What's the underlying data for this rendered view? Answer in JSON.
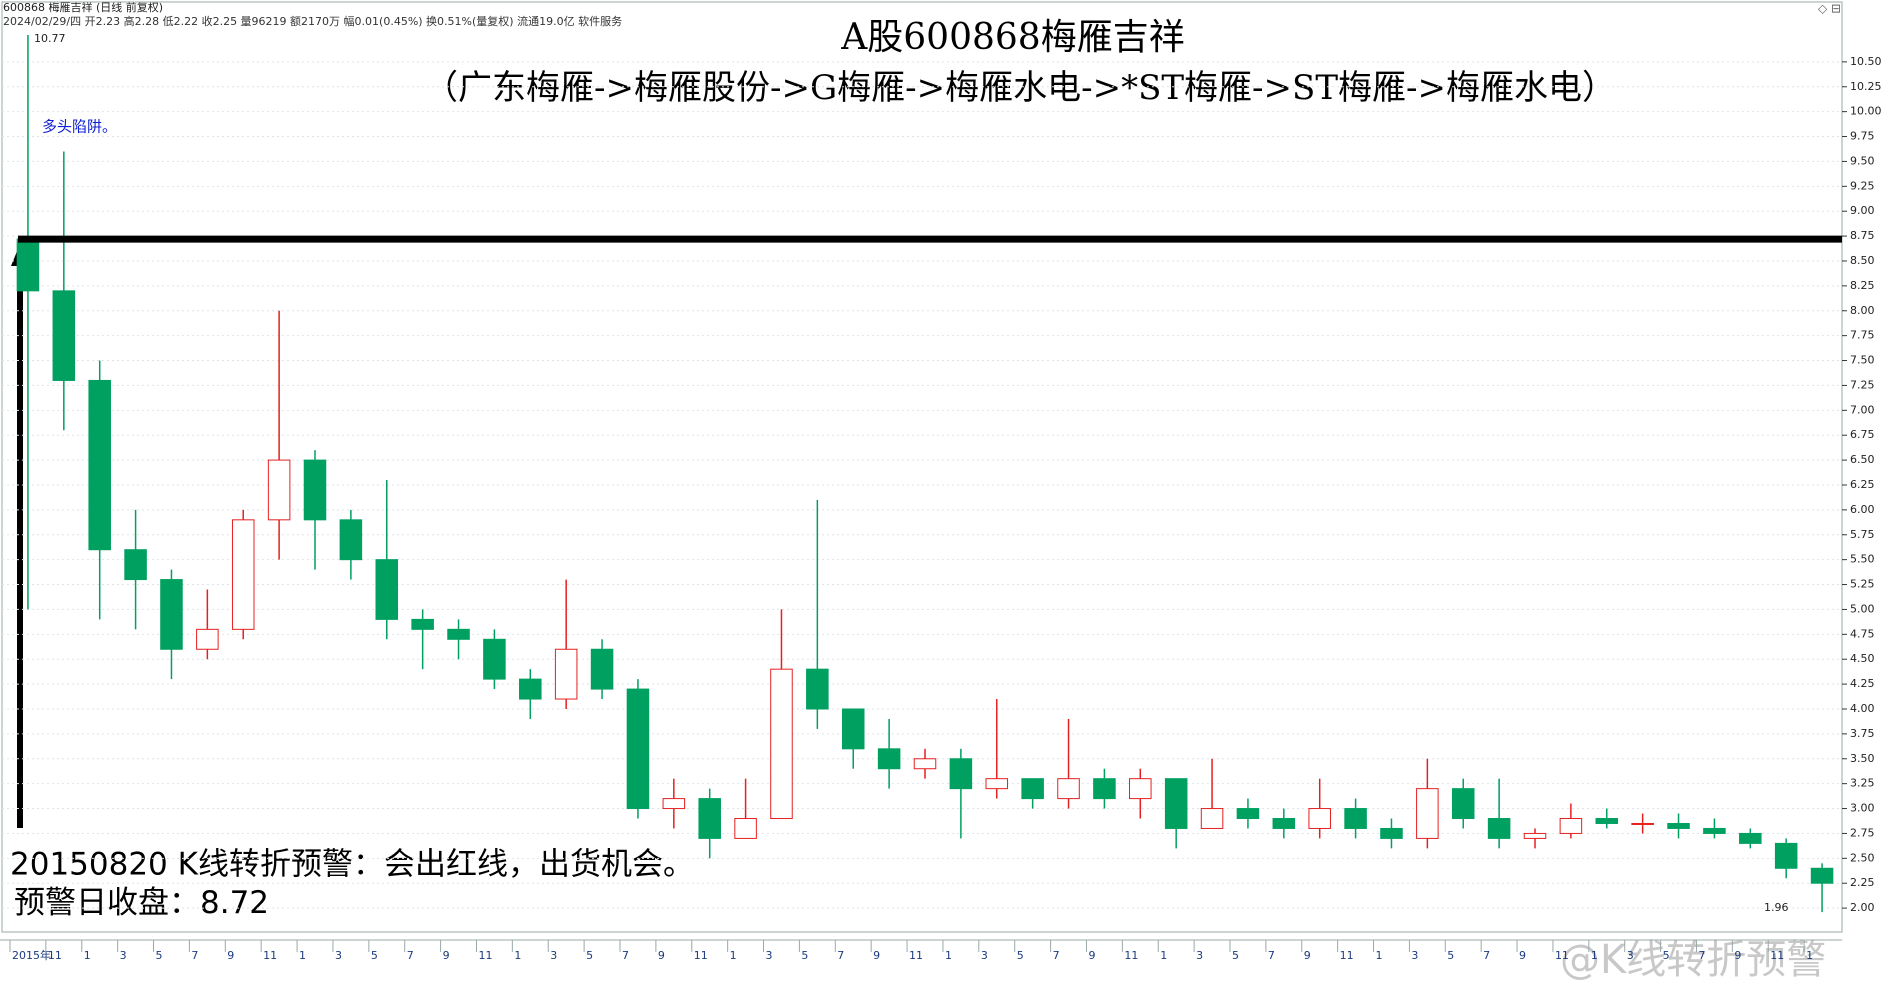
{
  "chart_data": {
    "type": "candlestick",
    "header": "600868 梅雁吉祥 (日线 前复权)",
    "info": "2024/02/29/四 开2.23 高2.28 低2.22 收2.25 量96219 额2170万 幅0.01(0.45%) 换0.51%(量复权) 流通19.0亿 软件服务",
    "title": "A股600868梅雁吉祥",
    "subtitle": "（广东梅雁->梅雁股份->G梅雁->梅雁水电->*ST梅雁->ST梅雁->梅雁水电）",
    "trap_note": "多头陷阱。",
    "alert_note": "20150820 K线转折预警：会出红线，出货机会。",
    "alert_label": "预警日收盘：",
    "alert_close": 8.72,
    "high_mark": 10.77,
    "low_mark": 1.96,
    "watermark": "@K线转折预警",
    "up_color": "#e62020",
    "down_color": "#00a060",
    "categories": [
      "2015年",
      "11",
      "1",
      "3",
      "5",
      "7",
      "9",
      "11",
      "1",
      "3",
      "5",
      "7",
      "9",
      "11",
      "1",
      "3",
      "5",
      "7",
      "9",
      "11",
      "1",
      "3",
      "5",
      "7",
      "9",
      "11",
      "1",
      "3",
      "5",
      "7",
      "9",
      "11",
      "1",
      "3",
      "5",
      "7",
      "9",
      "11",
      "1",
      "3",
      "5",
      "7",
      "9",
      "11",
      "1",
      "3",
      "5",
      "7",
      "9",
      "11",
      "1"
    ],
    "ohlc": {
      "open": [
        8.72,
        8.2,
        7.3,
        5.6,
        5.3,
        4.6,
        4.8,
        5.9,
        6.5,
        5.9,
        5.5,
        4.9,
        4.8,
        4.7,
        4.3,
        4.1,
        4.6,
        4.2,
        3.0,
        3.1,
        2.7,
        2.9,
        4.4,
        4.0,
        3.6,
        3.4,
        3.5,
        3.2,
        3.3,
        3.1,
        3.3,
        3.1,
        3.3,
        2.8,
        3.0,
        2.9,
        2.8,
        3.0,
        2.8,
        2.7,
        3.2,
        2.9,
        2.7,
        2.75,
        2.9,
        2.85,
        2.85,
        2.8,
        2.75,
        2.65,
        2.4
      ],
      "high": [
        10.77,
        9.6,
        7.5,
        6.0,
        5.4,
        5.2,
        6.0,
        8.0,
        6.6,
        6.0,
        6.3,
        5.0,
        4.9,
        4.8,
        4.4,
        5.3,
        4.7,
        4.3,
        3.3,
        3.2,
        3.3,
        5.0,
        6.1,
        4.0,
        3.9,
        3.6,
        3.6,
        4.1,
        3.3,
        3.9,
        3.4,
        3.4,
        3.3,
        3.5,
        3.1,
        3.0,
        3.3,
        3.1,
        2.9,
        3.5,
        3.3,
        3.3,
        2.8,
        3.05,
        3.0,
        2.95,
        2.95,
        2.9,
        2.8,
        2.7,
        2.45
      ],
      "low": [
        5.0,
        6.8,
        4.9,
        4.8,
        4.3,
        4.5,
        4.7,
        5.5,
        5.4,
        5.3,
        4.7,
        4.4,
        4.5,
        4.2,
        3.9,
        4.0,
        4.1,
        2.9,
        2.8,
        2.5,
        2.7,
        2.9,
        3.8,
        3.4,
        3.2,
        3.3,
        2.7,
        3.1,
        3.0,
        3.0,
        3.0,
        2.9,
        2.6,
        2.8,
        2.8,
        2.7,
        2.7,
        2.7,
        2.6,
        2.6,
        2.8,
        2.6,
        2.6,
        2.7,
        2.8,
        2.75,
        2.7,
        2.7,
        2.6,
        2.3,
        1.96
      ],
      "close": [
        8.2,
        7.3,
        5.6,
        5.3,
        4.6,
        4.8,
        5.9,
        6.5,
        5.9,
        5.5,
        4.9,
        4.8,
        4.7,
        4.3,
        4.1,
        4.6,
        4.2,
        3.0,
        3.1,
        2.7,
        2.9,
        4.4,
        4.0,
        3.6,
        3.4,
        3.5,
        3.2,
        3.3,
        3.1,
        3.3,
        3.1,
        3.3,
        2.8,
        3.0,
        2.9,
        2.8,
        3.0,
        2.8,
        2.7,
        3.2,
        2.9,
        2.7,
        2.75,
        2.9,
        2.85,
        2.85,
        2.8,
        2.75,
        2.65,
        2.4,
        2.25
      ]
    },
    "ylim": [
      1.76,
      10.8
    ],
    "yticks": [
      {
        "value": 2,
        "label": "2.00"
      },
      {
        "value": 2.25,
        "label": "2.25"
      },
      {
        "value": 2.5,
        "label": "2.50"
      },
      {
        "value": 2.75,
        "label": "2.75"
      },
      {
        "value": 3,
        "label": "3.00"
      },
      {
        "value": 3.25,
        "label": "3.25"
      },
      {
        "value": 3.5,
        "label": "3.50"
      },
      {
        "value": 3.75,
        "label": "3.75"
      },
      {
        "value": 4,
        "label": "4.00"
      },
      {
        "value": 4.25,
        "label": "4.25"
      },
      {
        "value": 4.5,
        "label": "4.50"
      },
      {
        "value": 4.75,
        "label": "4.75"
      },
      {
        "value": 5,
        "label": "5.00"
      },
      {
        "value": 5.25,
        "label": "5.25"
      },
      {
        "value": 5.5,
        "label": "5.50"
      },
      {
        "value": 5.75,
        "label": "5.75"
      },
      {
        "value": 6,
        "label": "6.00"
      },
      {
        "value": 6.25,
        "label": "6.25"
      },
      {
        "value": 6.5,
        "label": "6.50"
      },
      {
        "value": 6.75,
        "label": "6.75"
      },
      {
        "value": 7,
        "label": "7.00"
      },
      {
        "value": 7.25,
        "label": "7.25"
      },
      {
        "value": 7.5,
        "label": "7.50"
      },
      {
        "value": 7.75,
        "label": "7.75"
      },
      {
        "value": 8,
        "label": "8.00"
      },
      {
        "value": 8.25,
        "label": "8.25"
      },
      {
        "value": 8.5,
        "label": "8.50"
      },
      {
        "value": 8.75,
        "label": "8.75"
      },
      {
        "value": 9,
        "label": "9.00"
      },
      {
        "value": 9.25,
        "label": "9.25"
      },
      {
        "value": 9.5,
        "label": "9.50"
      },
      {
        "value": 9.75,
        "label": "9.75"
      },
      {
        "value": 10,
        "label": "10.00"
      },
      {
        "value": 10.25,
        "label": "10.25"
      },
      {
        "value": 10.5,
        "label": "10.50"
      }
    ],
    "grid": true
  }
}
